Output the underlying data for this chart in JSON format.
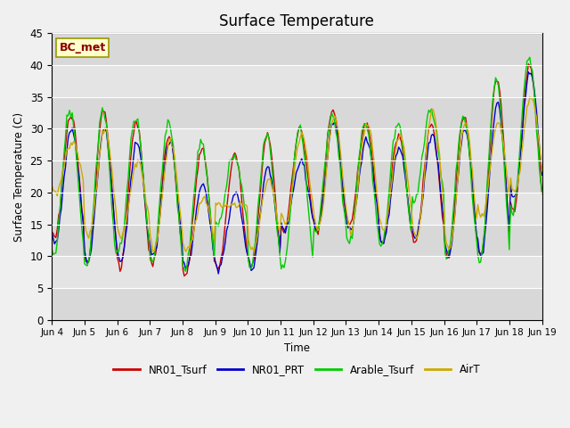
{
  "title": "Surface Temperature",
  "ylabel": "Surface Temperature (C)",
  "xlabel": "Time",
  "ylim": [
    0,
    45
  ],
  "annotation": "BC_met",
  "xtick_labels": [
    "Jun 4",
    "Jun 5",
    "Jun 6",
    "Jun 7",
    "Jun 8",
    "Jun 9",
    "Jun 10",
    "Jun 11",
    "Jun 12",
    "Jun 13",
    "Jun 14",
    "Jun 15",
    "Jun 16",
    "Jun 17",
    "Jun 18",
    "Jun 19"
  ],
  "legend": [
    "NR01_Tsurf",
    "NR01_PRT",
    "Arable_Tsurf",
    "AirT"
  ],
  "colors": [
    "#cc0000",
    "#0000cc",
    "#00cc00",
    "#ccaa00"
  ],
  "band_colors": [
    "#e0e0e0",
    "#d0d0d0"
  ],
  "title_fontsize": 12,
  "line_width": 1.0
}
